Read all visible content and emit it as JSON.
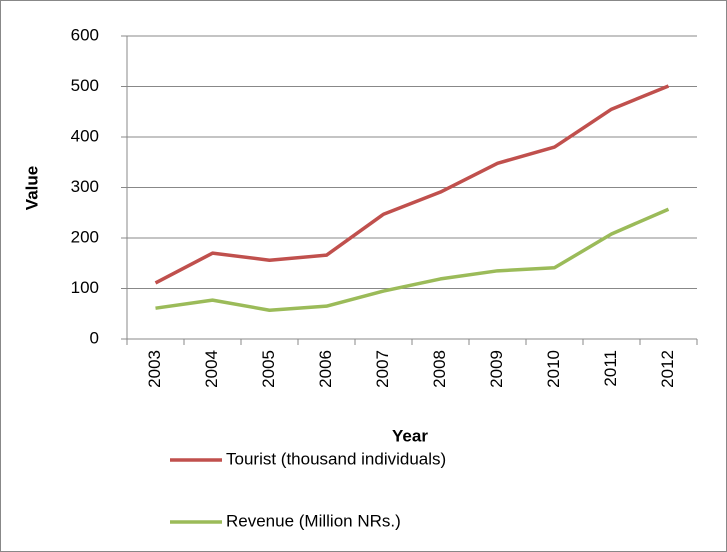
{
  "chart_data": {
    "type": "line",
    "x_label": "Year",
    "y_label": "Value",
    "categories": [
      "2003",
      "2004",
      "2005",
      "2006",
      "2007",
      "2008",
      "2009",
      "2010",
      "2011",
      "2012"
    ],
    "series": [
      {
        "name": "Tourist (thousand individuals)",
        "color": "#c0504d",
        "values": [
          111,
          170,
          156,
          166,
          247,
          291,
          348,
          380,
          455,
          501
        ]
      },
      {
        "name": "Revenue (Million NRs.)",
        "color": "#9bbb59",
        "values": [
          61,
          77,
          57,
          65,
          95,
          119,
          135,
          141,
          208,
          257
        ]
      }
    ],
    "ylim": [
      0,
      600
    ],
    "yticks": [
      0,
      100,
      200,
      300,
      400,
      500,
      600
    ],
    "grid": true
  }
}
